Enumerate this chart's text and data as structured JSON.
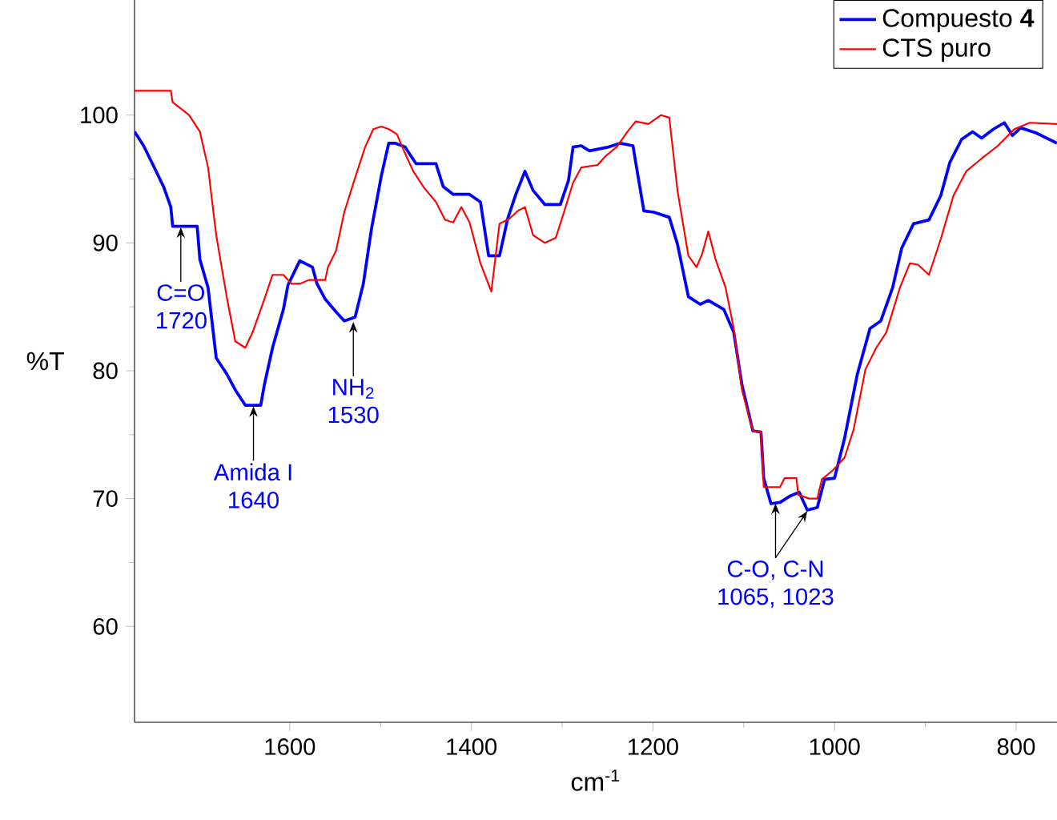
{
  "chart_data": {
    "type": "line",
    "xlabel": "cm$^{-1}$",
    "ylabel": "%T",
    "xlim": [
      1771,
      755
    ],
    "ylim": [
      52.5,
      109
    ],
    "xticks": [
      1600,
      1400,
      1200,
      1000,
      800
    ],
    "yticks": [
      60,
      70,
      80,
      90,
      100
    ],
    "grid": false,
    "legend": "top right",
    "x": [
      1771,
      1761,
      1752,
      1739,
      1731,
      1729,
      1702,
      1699,
      1690,
      1681,
      1669,
      1660,
      1649,
      1632,
      1628,
      1619,
      1607,
      1602,
      1589,
      1575,
      1570,
      1561,
      1549,
      1540,
      1528,
      1519,
      1510,
      1499,
      1491,
      1484,
      1473,
      1461,
      1439,
      1431,
      1420,
      1402,
      1390,
      1381,
      1369,
      1360,
      1351,
      1341,
      1332,
      1319,
      1302,
      1293,
      1288,
      1279,
      1270,
      1249,
      1236,
      1222,
      1219,
      1210,
      1199,
      1182,
      1173,
      1161,
      1148,
      1139,
      1122,
      1111,
      1102,
      1090,
      1081,
      1078,
      1070,
      1060,
      1049,
      1039,
      1030,
      1019,
      1011,
      1000,
      989,
      975,
      961,
      949,
      936,
      926,
      913,
      896,
      883,
      873,
      860,
      848,
      838,
      825,
      813,
      804,
      795,
      778,
      755
    ],
    "series": [
      {
        "name": "Compuesto **4**",
        "color": "#0000ff",
        "values": [
          98.7,
          97.6,
          96.3,
          94.4,
          92.8,
          91.3,
          91.3,
          88.7,
          86.5,
          81,
          79.7,
          78.5,
          77.3,
          77.3,
          78.9,
          81.8,
          84.8,
          86.7,
          88.6,
          88.1,
          86.8,
          85.6,
          84.6,
          83.9,
          84.2,
          86.8,
          91.1,
          95.3,
          97.8,
          97.8,
          97.5,
          96.2,
          96.2,
          94.4,
          93.8,
          93.8,
          93.2,
          89,
          89,
          91.9,
          93.8,
          95.6,
          94.1,
          93,
          93,
          94.9,
          97.5,
          97.6,
          97.2,
          97.5,
          97.8,
          97.6,
          96.3,
          92.5,
          92.4,
          92,
          89.9,
          85.8,
          85.2,
          85.5,
          84.8,
          83,
          78.9,
          75.3,
          75.2,
          71.6,
          69.6,
          69.7,
          70.2,
          70.5,
          69.1,
          69.3,
          71.5,
          71.6,
          74.7,
          79.7,
          83.3,
          83.9,
          86.5,
          89.6,
          91.5,
          91.8,
          93.7,
          96.3,
          98.1,
          98.7,
          98.2,
          98.9,
          99.4,
          98.4,
          99,
          98.6,
          97.8
        ]
      },
      {
        "name": "CTS puro",
        "color": "#ff0000",
        "x": [
          1771,
          1731,
          1729,
          1711,
          1699,
          1690,
          1681,
          1669,
          1660,
          1649,
          1641,
          1628,
          1619,
          1607,
          1598,
          1589,
          1579,
          1561,
          1558,
          1549,
          1540,
          1528,
          1517,
          1508,
          1499,
          1491,
          1482,
          1473,
          1464,
          1452,
          1439,
          1429,
          1420,
          1411,
          1402,
          1390,
          1378,
          1369,
          1358,
          1349,
          1341,
          1332,
          1319,
          1307,
          1298,
          1288,
          1279,
          1261,
          1252,
          1240,
          1228,
          1219,
          1205,
          1191,
          1182,
          1173,
          1161,
          1152,
          1146,
          1139,
          1131,
          1120,
          1111,
          1102,
          1090,
          1081,
          1078,
          1060,
          1055,
          1042,
          1040,
          1028,
          1019,
          1014,
          1002,
          989,
          979,
          966,
          954,
          943,
          928,
          917,
          908,
          896,
          883,
          869,
          855,
          838,
          820,
          802,
          785,
          755
        ],
        "values": [
          101.9,
          101.9,
          101,
          100,
          98.7,
          95.9,
          90.6,
          85.6,
          82.3,
          81.8,
          83,
          85.6,
          87.5,
          87.5,
          86.8,
          86.8,
          87.1,
          87.1,
          88.1,
          89.4,
          92.4,
          95.1,
          97.5,
          98.9,
          99.1,
          98.9,
          98.5,
          97,
          95.6,
          94.3,
          93.2,
          91.8,
          91.6,
          92.8,
          91.6,
          88.4,
          86.2,
          91.5,
          91.9,
          92.5,
          92.8,
          90.6,
          90,
          90.4,
          92.4,
          94.7,
          95.9,
          96.1,
          96.8,
          97.5,
          98.7,
          99.5,
          99.3,
          100,
          99.8,
          94.1,
          89,
          88.1,
          89.1,
          90.9,
          88.7,
          86.5,
          83.3,
          78.5,
          75.3,
          75.2,
          70.9,
          70.9,
          71.6,
          71.6,
          70.3,
          70,
          70,
          71.5,
          72.2,
          73.2,
          75.4,
          80.1,
          81.8,
          83,
          86.5,
          88.4,
          88.3,
          87.5,
          90.3,
          93.7,
          95.6,
          96.6,
          97.6,
          98.9,
          99.4,
          99.3
        ]
      }
    ],
    "annotations": [
      {
        "text": "C=O 1720",
        "x": 1720,
        "y": 91.3
      },
      {
        "text": "Amida I 1640",
        "x": 1640,
        "y": 77.3
      },
      {
        "text": "NH$_{2}$ 1530",
        "x": 1530,
        "y": 83.9
      },
      {
        "text": "C-O, C-N 1065, 1023",
        "x": 1065,
        "y": 69.7
      }
    ]
  }
}
